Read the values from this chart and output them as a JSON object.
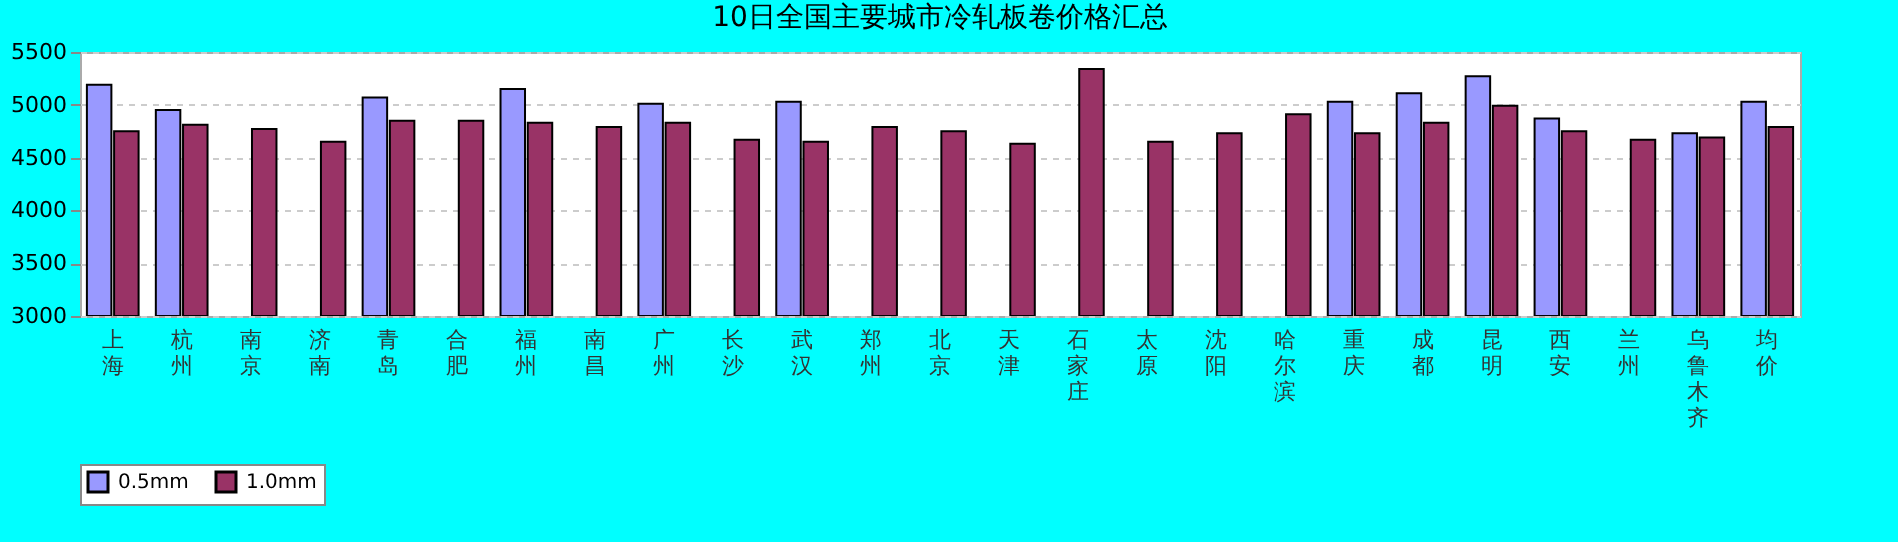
{
  "chart_data": {
    "type": "bar",
    "title": "10日全国主要城市冷轧板卷价格汇总",
    "categories": [
      "上海",
      "杭州",
      "南京",
      "济南",
      "青岛",
      "合肥",
      "福州",
      "南昌",
      "广州",
      "长沙",
      "武汉",
      "郑州",
      "北京",
      "天津",
      "石家庄",
      "太原",
      "沈阳",
      "哈尔滨",
      "重庆",
      "成都",
      "昆明",
      "西安",
      "兰州",
      "乌鲁木齐",
      "均价"
    ],
    "series": [
      {
        "name": "0.5mm",
        "color": "#9999ff",
        "values": [
          5190,
          4950,
          null,
          null,
          5070,
          null,
          5150,
          null,
          5010,
          null,
          5030,
          null,
          null,
          null,
          null,
          null,
          null,
          null,
          5030,
          5110,
          5270,
          4870,
          null,
          4730,
          5030
        ]
      },
      {
        "name": "1.0mm",
        "color": "#993366",
        "values": [
          4750,
          4810,
          4770,
          4650,
          4850,
          4850,
          4830,
          4790,
          4830,
          4670,
          4650,
          4790,
          4750,
          4630,
          5340,
          4650,
          4730,
          4910,
          4730,
          4830,
          4990,
          4750,
          4670,
          4690,
          4790
        ]
      }
    ],
    "ylim": [
      3000,
      5500
    ],
    "yticks": [
      3000,
      3500,
      4000,
      4500,
      5000,
      5500
    ],
    "grid": "y",
    "legend": "bottom"
  }
}
